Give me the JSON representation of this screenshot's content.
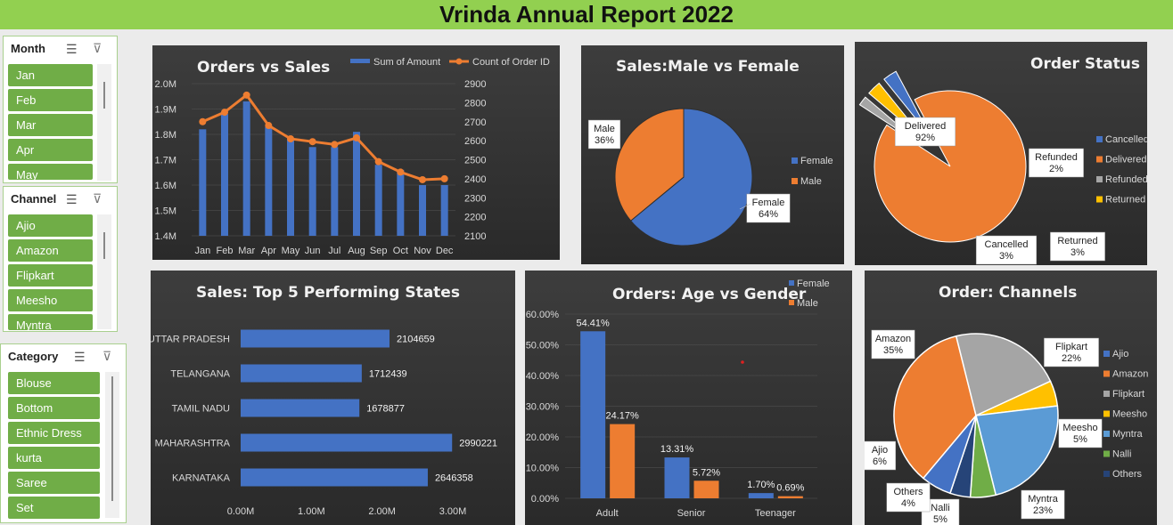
{
  "report_title": "Vrinda Annual Report 2022",
  "slicers": {
    "month": {
      "title": "Month",
      "items": [
        "Jan",
        "Feb",
        "Mar",
        "Apr",
        "May"
      ]
    },
    "channel": {
      "title": "Channel",
      "items": [
        "Ajio",
        "Amazon",
        "Flipkart",
        "Meesho",
        "Myntra"
      ]
    },
    "category": {
      "title": "Category",
      "items": [
        "Blouse",
        "Bottom",
        "Ethnic Dress",
        "kurta",
        "Saree",
        "Set"
      ]
    }
  },
  "colors": {
    "blue": "#4472c4",
    "orange": "#ed7d31",
    "gray": "#a5a5a5",
    "gold": "#ffc000",
    "lightblue": "#5b9bd5",
    "green": "#70ad47",
    "navy": "#264478",
    "slicer_green": "#70ad47",
    "header_green": "#92d050"
  },
  "chart_data": [
    {
      "type": "bar",
      "title": "Orders vs Sales",
      "categories": [
        "Jan",
        "Feb",
        "Mar",
        "Apr",
        "May",
        "Jun",
        "Jul",
        "Aug",
        "Sep",
        "Oct",
        "Nov",
        "Dec"
      ],
      "series": [
        {
          "name": "Sum of Amount",
          "axis": "left",
          "values": [
            1.82,
            1.88,
            1.93,
            1.83,
            1.78,
            1.75,
            1.75,
            1.81,
            1.68,
            1.66,
            1.6,
            1.6
          ]
        },
        {
          "name": "Count of Order ID",
          "axis": "right",
          "chart": "line",
          "values": [
            2700,
            2750,
            2840,
            2680,
            2610,
            2595,
            2580,
            2615,
            2490,
            2435,
            2395,
            2400
          ]
        }
      ],
      "y_left_ticks": [
        "1.4M",
        "1.5M",
        "1.6M",
        "1.7M",
        "1.8M",
        "1.9M",
        "2.0M"
      ],
      "ylim_left": [
        1.4,
        2.0
      ],
      "y_right_ticks": [
        "2100",
        "2200",
        "2300",
        "2400",
        "2500",
        "2600",
        "2700",
        "2800",
        "2900"
      ],
      "ylim_right": [
        2100,
        2900
      ],
      "legend": "top-right"
    },
    {
      "type": "pie",
      "title": "Sales:Male vs Female",
      "categories": [
        "Female",
        "Male"
      ],
      "values": [
        64,
        36
      ],
      "data_labels": [
        "64%",
        "36%"
      ],
      "legend": "right"
    },
    {
      "type": "pie",
      "title": "Order Status",
      "categories": [
        "Cancelled",
        "Delivered",
        "Refunded",
        "Returned"
      ],
      "values": [
        3,
        92,
        2,
        3
      ],
      "data_labels": [
        "3%",
        "92%",
        "2%",
        "3%"
      ],
      "legend": "right"
    },
    {
      "type": "bar",
      "orientation": "horizontal",
      "title": "Sales: Top 5 Performing States",
      "categories": [
        "UTTAR PRADESH",
        "TELANGANA",
        "TAMIL NADU",
        "MAHARASHTRA",
        "KARNATAKA"
      ],
      "values": [
        2104659,
        1712439,
        1678877,
        2990221,
        2646358
      ],
      "x_ticks": [
        "0.00M",
        "1.00M",
        "2.00M",
        "3.00M"
      ],
      "xlim": [
        0,
        3000000
      ]
    },
    {
      "type": "bar",
      "title": "Orders: Age vs Gender",
      "categories": [
        "Adult",
        "Senior",
        "Teenager"
      ],
      "series": [
        {
          "name": "Female",
          "values": [
            54.41,
            13.31,
            1.7
          ],
          "labels": [
            "54.41%",
            "13.31%",
            "1.70%"
          ]
        },
        {
          "name": "Male",
          "values": [
            24.17,
            5.72,
            0.69
          ],
          "labels": [
            "24.17%",
            "5.72%",
            "0.69%"
          ]
        }
      ],
      "y_ticks": [
        "0.00%",
        "10.00%",
        "20.00%",
        "30.00%",
        "40.00%",
        "50.00%",
        "60.00%"
      ],
      "ylim": [
        0,
        60
      ],
      "legend": "top-right"
    },
    {
      "type": "pie",
      "title": "Order: Channels",
      "categories": [
        "Ajio",
        "Amazon",
        "Flipkart",
        "Meesho",
        "Myntra",
        "Nalli",
        "Others"
      ],
      "values": [
        6,
        35,
        22,
        5,
        23,
        5,
        4
      ],
      "data_labels": [
        "6%",
        "35%",
        "22%",
        "5%",
        "23%",
        "5%",
        "4%"
      ],
      "legend": "right"
    }
  ]
}
